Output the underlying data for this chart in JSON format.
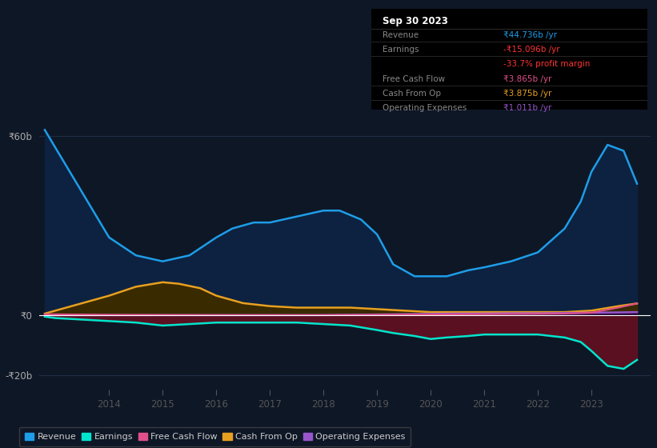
{
  "bg_color": "#0e1726",
  "plot_bg_color": "#0e1726",
  "grid_color": "#1e2d45",
  "yticks": [
    -20,
    0,
    60
  ],
  "ylim": [
    -25,
    68
  ],
  "xlim": [
    2012.7,
    2024.1
  ],
  "xticks": [
    2014,
    2015,
    2016,
    2017,
    2018,
    2019,
    2020,
    2021,
    2022,
    2023
  ],
  "series": {
    "revenue": {
      "x": [
        2012.8,
        2013.3,
        2014.0,
        2014.5,
        2015.0,
        2015.5,
        2016.0,
        2016.3,
        2016.7,
        2017.0,
        2017.5,
        2018.0,
        2018.3,
        2018.7,
        2019.0,
        2019.3,
        2019.7,
        2020.0,
        2020.3,
        2020.7,
        2021.0,
        2021.5,
        2022.0,
        2022.5,
        2022.8,
        2023.0,
        2023.3,
        2023.6,
        2023.85
      ],
      "y": [
        62,
        47,
        26,
        20,
        18,
        20,
        26,
        29,
        31,
        31,
        33,
        35,
        35,
        32,
        27,
        17,
        13,
        13,
        13,
        15,
        16,
        18,
        21,
        29,
        38,
        48,
        57,
        55,
        44
      ],
      "color": "#1e9de8",
      "fill_color": "#0d2240",
      "label": "Revenue"
    },
    "earnings": {
      "x": [
        2012.8,
        2013.0,
        2013.5,
        2014.0,
        2014.5,
        2015.0,
        2015.5,
        2016.0,
        2016.5,
        2017.0,
        2017.5,
        2018.0,
        2018.5,
        2019.0,
        2019.3,
        2019.7,
        2020.0,
        2020.3,
        2020.7,
        2021.0,
        2021.5,
        2022.0,
        2022.5,
        2022.8,
        2023.0,
        2023.3,
        2023.6,
        2023.85
      ],
      "y": [
        -0.5,
        -1.0,
        -1.5,
        -2.0,
        -2.5,
        -3.5,
        -3.0,
        -2.5,
        -2.5,
        -2.5,
        -2.5,
        -3.0,
        -3.5,
        -5.0,
        -6.0,
        -7.0,
        -8.0,
        -7.5,
        -7.0,
        -6.5,
        -6.5,
        -6.5,
        -7.5,
        -9.0,
        -12.0,
        -17.0,
        -18.0,
        -15.0
      ],
      "color": "#00e5cc",
      "fill_color": "#5a1020",
      "label": "Earnings"
    },
    "free_cash_flow": {
      "x": [
        2012.8,
        2013.5,
        2014.0,
        2015.0,
        2016.0,
        2017.0,
        2018.0,
        2019.0,
        2020.0,
        2021.0,
        2022.0,
        2022.5,
        2023.0,
        2023.5,
        2023.85
      ],
      "y": [
        0.3,
        0.2,
        0.1,
        0.05,
        0.0,
        0.0,
        0.0,
        0.1,
        0.2,
        0.3,
        0.4,
        0.5,
        0.8,
        2.5,
        3.9
      ],
      "color": "#e0508a",
      "label": "Free Cash Flow"
    },
    "cash_from_op": {
      "x": [
        2012.8,
        2013.0,
        2013.5,
        2014.0,
        2014.5,
        2015.0,
        2015.3,
        2015.7,
        2016.0,
        2016.5,
        2017.0,
        2017.5,
        2018.0,
        2018.5,
        2019.0,
        2019.5,
        2020.0,
        2020.5,
        2021.0,
        2021.5,
        2022.0,
        2022.5,
        2023.0,
        2023.5,
        2023.85
      ],
      "y": [
        0.5,
        1.5,
        4.0,
        6.5,
        9.5,
        11.0,
        10.5,
        9.0,
        6.5,
        4.0,
        3.0,
        2.5,
        2.5,
        2.5,
        2.0,
        1.5,
        1.0,
        1.0,
        1.0,
        1.0,
        1.0,
        1.0,
        1.5,
        3.0,
        3.9
      ],
      "color": "#e8a020",
      "fill_color": "#3a2a00",
      "label": "Cash From Op"
    },
    "operating_expenses": {
      "x": [
        2012.8,
        2014.0,
        2016.0,
        2018.0,
        2018.5,
        2019.0,
        2019.5,
        2020.0,
        2020.5,
        2021.0,
        2021.5,
        2022.0,
        2022.5,
        2023.0,
        2023.5,
        2023.85
      ],
      "y": [
        0.0,
        0.0,
        0.0,
        0.0,
        0.1,
        0.2,
        0.3,
        0.4,
        0.5,
        0.5,
        0.6,
        0.6,
        0.7,
        0.8,
        0.9,
        1.0
      ],
      "color": "#9955cc",
      "fill_color": "#2a0a3a",
      "label": "Operating Expenses"
    }
  },
  "tooltip": {
    "date": "Sep 30 2023",
    "rows": [
      {
        "label": "Revenue",
        "value": "₹44.736b /yr",
        "label_color": "#888888",
        "value_color": "#1e9de8"
      },
      {
        "label": "Earnings",
        "value": "-₹15.096b /yr",
        "label_color": "#888888",
        "value_color": "#ff3333"
      },
      {
        "label": "",
        "value": "-33.7% profit margin",
        "label_color": "#888888",
        "value_color": "#ff3333"
      },
      {
        "label": "Free Cash Flow",
        "value": "₹3.865b /yr",
        "label_color": "#888888",
        "value_color": "#e0508a"
      },
      {
        "label": "Cash From Op",
        "value": "₹3.875b /yr",
        "label_color": "#888888",
        "value_color": "#e8a020"
      },
      {
        "label": "Operating Expenses",
        "value": "₹1.011b /yr",
        "label_color": "#888888",
        "value_color": "#9955cc"
      }
    ]
  },
  "legend": [
    {
      "label": "Revenue",
      "color": "#1e9de8"
    },
    {
      "label": "Earnings",
      "color": "#00e5cc"
    },
    {
      "label": "Free Cash Flow",
      "color": "#e0508a"
    },
    {
      "label": "Cash From Op",
      "color": "#e8a020"
    },
    {
      "label": "Operating Expenses",
      "color": "#9955cc"
    }
  ]
}
